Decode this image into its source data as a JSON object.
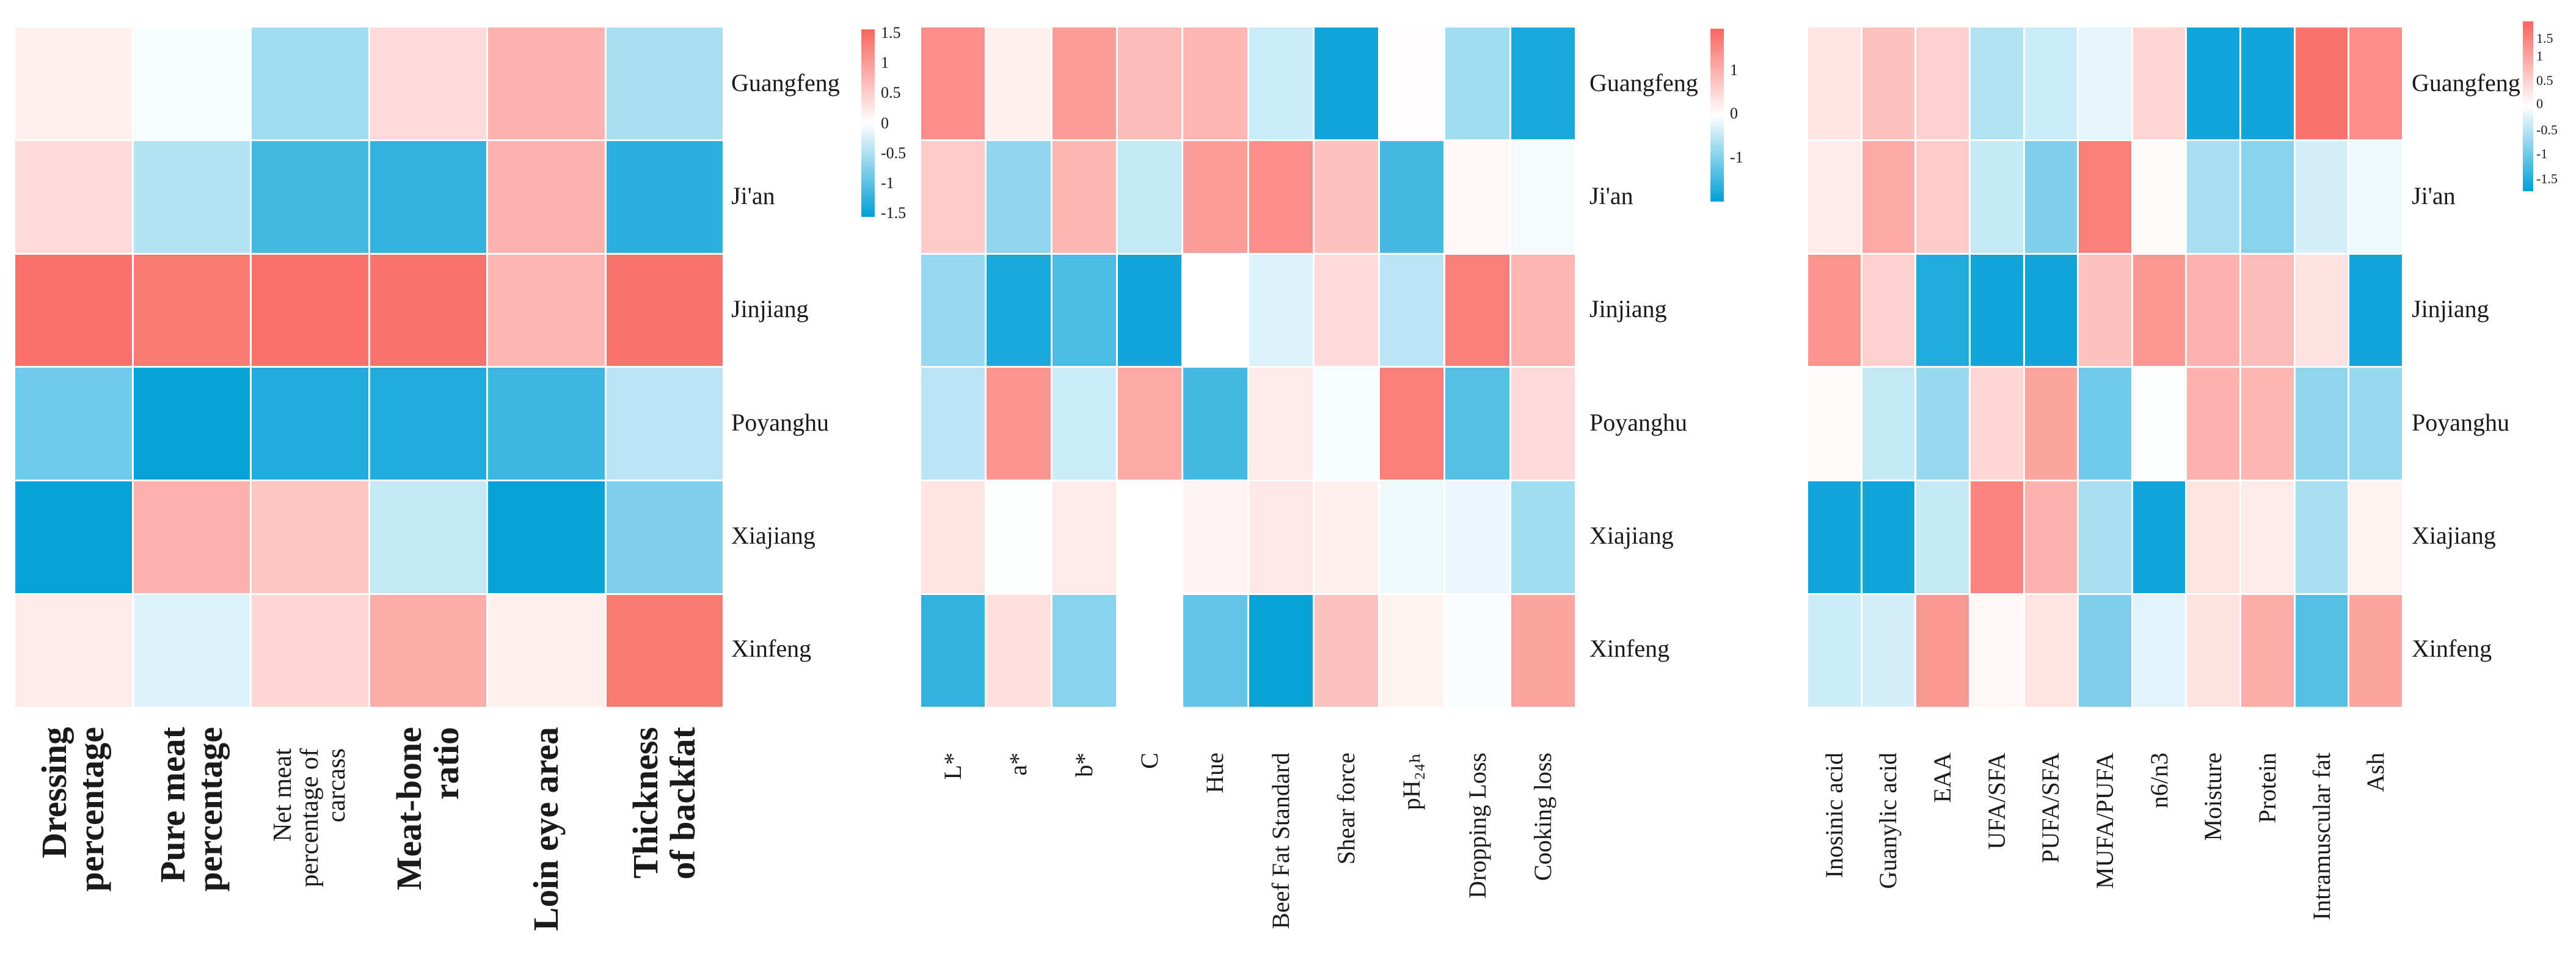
{
  "figure": {
    "background": "#ffffff",
    "description": "Three heatmaps of standardized trait values (z-scores) for six cattle populations",
    "row_labels": [
      "Guangfeng",
      "Ji'an",
      "Jinjiang",
      "Poyanghu",
      "Xiajiang",
      "Xinfeng"
    ]
  },
  "chart_data": [
    {
      "type": "heatmap",
      "name": "carcass-traits-heatmap",
      "rows": [
        "Guangfeng",
        "Ji'an",
        "Jinjiang",
        "Poyanghu",
        "Xiajiang",
        "Xinfeng"
      ],
      "columns": [
        "Dressing\npercentage",
        "Pure meat\npercentage",
        "Net meat\npercentage of\ncarcass",
        "Meat-bone\nratio",
        "Loin eye area",
        "Thickness\nof backfat"
      ],
      "values": [
        [
          0.15,
          -0.05,
          -0.55,
          0.35,
          0.75,
          -0.5
        ],
        [
          0.35,
          -0.45,
          -1.1,
          -1.2,
          0.75,
          -1.25
        ],
        [
          1.4,
          1.3,
          1.4,
          1.35,
          0.7,
          1.35
        ],
        [
          -0.85,
          -1.45,
          -1.3,
          -1.3,
          -1.15,
          -0.4
        ],
        [
          -1.45,
          0.75,
          0.55,
          -0.35,
          -1.45,
          -0.75
        ],
        [
          0.2,
          -0.2,
          0.4,
          0.8,
          0.15,
          1.3
        ]
      ],
      "colorbar": {
        "ticks": [
          "1.5",
          "1",
          "0.5",
          "0",
          "-0.5",
          "-1",
          "-1.5"
        ],
        "range": [
          -1.5,
          1.5
        ],
        "position": "right"
      },
      "colors": {
        "high": "#F9655F",
        "mid": "#FFFFFF",
        "low": "#009FD6"
      },
      "grid": true,
      "legend_position": "right"
    },
    {
      "type": "heatmap",
      "name": "meat-quality-heatmap",
      "rows": [
        "Guangfeng",
        "Ji'an",
        "Jinjiang",
        "Poyanghu",
        "Xiajiang",
        "Xinfeng"
      ],
      "columns": [
        "L*",
        "a*",
        "b*",
        "C",
        "Hue",
        "Beef Fat Standard",
        "Shear force",
        "pH₂₄ₕ",
        "Dropping Loss",
        "Cooking loss"
      ],
      "values": [
        [
          1.1,
          0.15,
          0.95,
          0.65,
          0.7,
          -0.3,
          -1.4,
          0.02,
          -0.55,
          -1.35
        ],
        [
          0.5,
          -0.65,
          0.7,
          -0.35,
          0.95,
          1.1,
          0.6,
          -1.1,
          0.07,
          -0.06
        ],
        [
          -0.6,
          -1.35,
          -1.05,
          -1.4,
          0.0,
          -0.2,
          0.35,
          -0.4,
          1.25,
          0.7
        ],
        [
          -0.4,
          1.05,
          -0.3,
          0.85,
          -1.1,
          0.2,
          -0.05,
          1.25,
          -1.0,
          0.35
        ],
        [
          0.25,
          -0.02,
          0.2,
          0.0,
          0.1,
          0.22,
          0.15,
          -0.1,
          -0.12,
          -0.55
        ],
        [
          -1.2,
          0.3,
          -0.7,
          0.0,
          -0.9,
          -1.45,
          0.6,
          0.12,
          -0.03,
          0.9
        ]
      ],
      "colorbar": {
        "ticks": [
          "1",
          "0",
          "-1"
        ],
        "range": [
          -1.5,
          1.5
        ],
        "position": "right"
      },
      "colors": {
        "high": "#F9655F",
        "mid": "#FFFFFF",
        "low": "#009FD6"
      },
      "grid": true,
      "legend_position": "right"
    },
    {
      "type": "heatmap",
      "name": "nutrient-flavor-heatmap",
      "rows": [
        "Guangfeng",
        "Ji'an",
        "Jinjiang",
        "Poyanghu",
        "Xiajiang",
        "Xinfeng"
      ],
      "columns": [
        "Inosinic acid",
        "Guanylic acid",
        "EAA",
        "UFA/SFA",
        "PUFA/SFA",
        "MUFA/PUFA",
        "n6/n3",
        "Moisture",
        "Protein",
        "Intramuscular fat",
        "Ash"
      ],
      "values": [
        [
          0.25,
          0.6,
          0.45,
          -0.45,
          -0.3,
          -0.15,
          0.4,
          -1.4,
          -1.4,
          1.35,
          1.1
        ],
        [
          0.2,
          0.85,
          0.5,
          -0.35,
          -0.75,
          1.25,
          0.05,
          -0.5,
          -0.7,
          -0.25,
          -0.1
        ],
        [
          1.05,
          0.45,
          -1.3,
          -1.4,
          -1.4,
          0.6,
          1.0,
          0.75,
          0.65,
          0.28,
          -1.4
        ],
        [
          0.05,
          -0.35,
          -0.6,
          0.4,
          0.9,
          -0.85,
          -0.02,
          0.75,
          0.7,
          -0.65,
          -0.6
        ],
        [
          -1.4,
          -1.4,
          -0.35,
          1.2,
          0.75,
          -0.5,
          -1.4,
          0.25,
          0.2,
          -0.5,
          0.12
        ],
        [
          -0.3,
          -0.25,
          1.0,
          0.08,
          0.25,
          -0.75,
          -0.18,
          0.28,
          0.8,
          -1.0,
          0.88
        ]
      ],
      "colorbar": {
        "ticks": [
          "1.5",
          "1",
          "0.5",
          "0",
          "-0.5",
          "-1",
          "-1.5"
        ],
        "range": [
          -1.5,
          1.5
        ],
        "position": "right"
      },
      "colors": {
        "high": "#F9655F",
        "mid": "#FFFFFF",
        "low": "#009FD6"
      },
      "grid": true,
      "legend_position": "right"
    }
  ]
}
